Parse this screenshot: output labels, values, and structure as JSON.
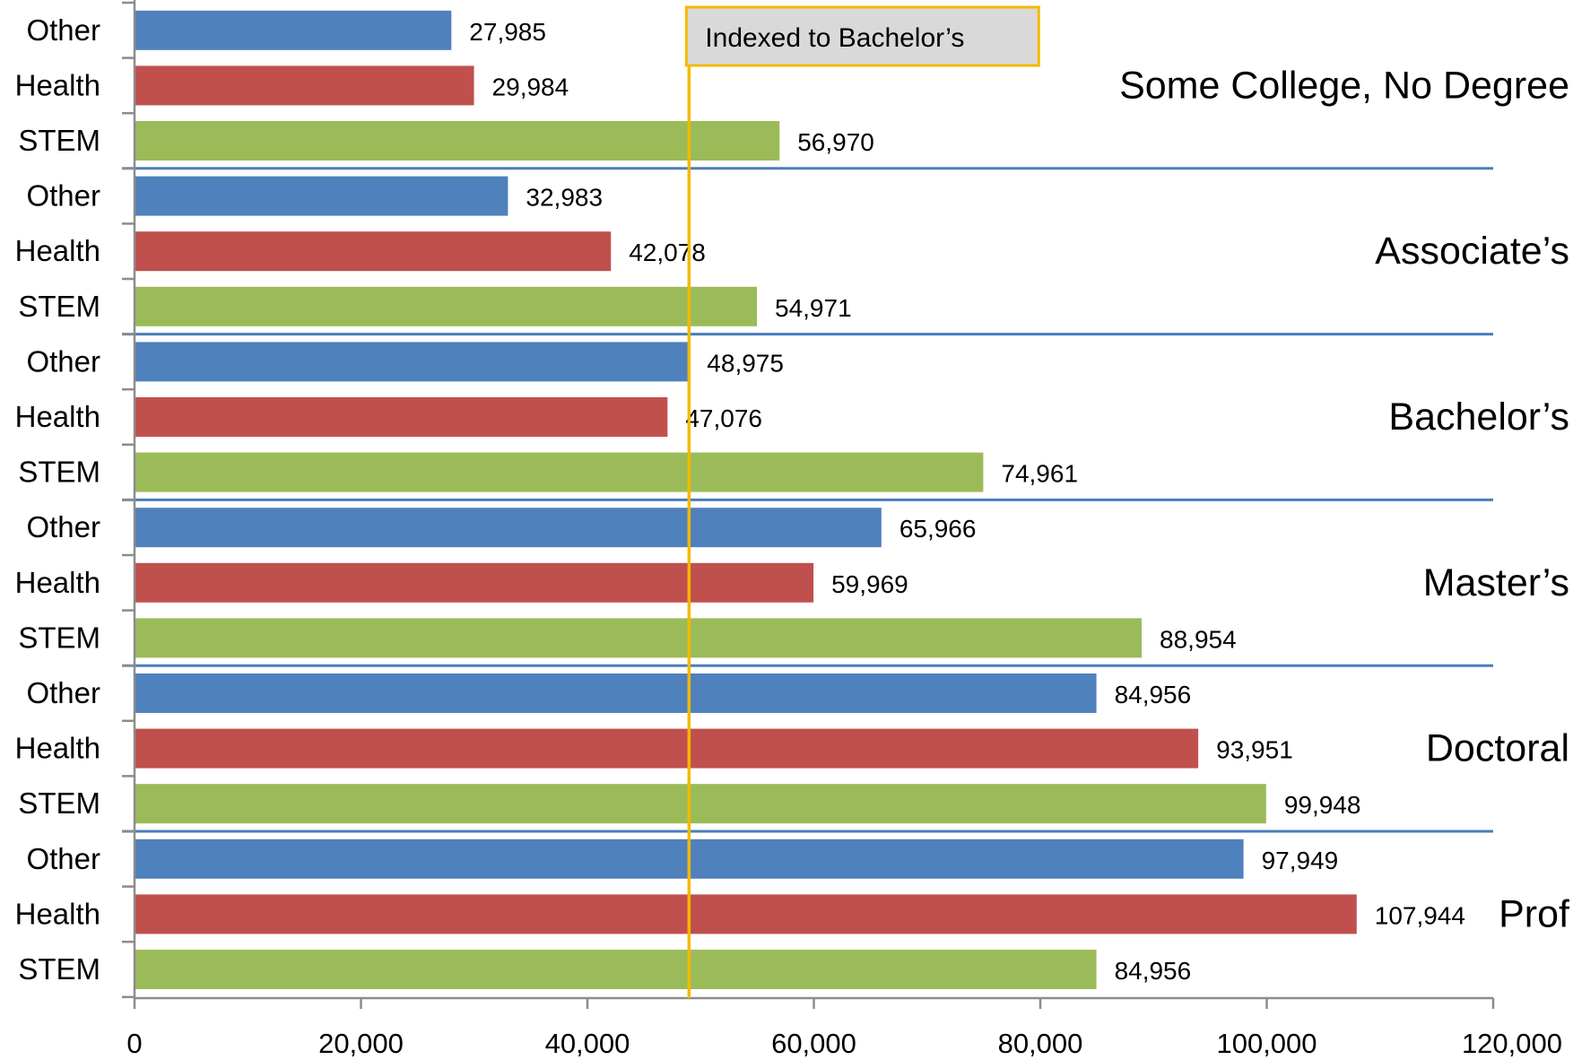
{
  "chart_data": {
    "type": "bar",
    "orientation": "horizontal",
    "xlim": [
      0,
      120000
    ],
    "x_ticks": [
      0,
      20000,
      40000,
      60000,
      80000,
      100000,
      120000
    ],
    "x_tick_labels": [
      "0",
      "20,000",
      "40,000",
      "60,000",
      "80,000",
      "100,000",
      "120,000"
    ],
    "grid": false,
    "colors": {
      "Other": "#4f81bd",
      "Health": "#c0504d",
      "STEM": "#9bbb59",
      "reference": "#f5b800",
      "separator": "#4a7ebb"
    },
    "reference_line": {
      "label": "Indexed to Bachelor’s",
      "value": 48975
    },
    "groups": [
      {
        "name": "Some College, No Degree",
        "bars": [
          {
            "category": "Other",
            "value": 27985,
            "label": "27,985"
          },
          {
            "category": "Health",
            "value": 29984,
            "label": "29,984"
          },
          {
            "category": "STEM",
            "value": 56970,
            "label": "56,970"
          }
        ]
      },
      {
        "name": "Associate’s",
        "bars": [
          {
            "category": "Other",
            "value": 32983,
            "label": "32,983"
          },
          {
            "category": "Health",
            "value": 42078,
            "label": "42,078"
          },
          {
            "category": "STEM",
            "value": 54971,
            "label": "54,971"
          }
        ]
      },
      {
        "name": "Bachelor’s",
        "bars": [
          {
            "category": "Other",
            "value": 48975,
            "label": "48,975"
          },
          {
            "category": "Health",
            "value": 47076,
            "label": "47,076"
          },
          {
            "category": "STEM",
            "value": 74961,
            "label": "74,961"
          }
        ]
      },
      {
        "name": "Master’s",
        "bars": [
          {
            "category": "Other",
            "value": 65966,
            "label": "65,966"
          },
          {
            "category": "Health",
            "value": 59969,
            "label": "59,969"
          },
          {
            "category": "STEM",
            "value": 88954,
            "label": "88,954"
          }
        ]
      },
      {
        "name": "Doctoral",
        "bars": [
          {
            "category": "Other",
            "value": 84956,
            "label": "84,956"
          },
          {
            "category": "Health",
            "value": 93951,
            "label": "93,951"
          },
          {
            "category": "STEM",
            "value": 99948,
            "label": "99,948"
          }
        ]
      },
      {
        "name": "Prof",
        "bars": [
          {
            "category": "Other",
            "value": 97949,
            "label": "97,949"
          },
          {
            "category": "Health",
            "value": 107944,
            "label": "107,944"
          },
          {
            "category": "STEM",
            "value": 84956,
            "label": "84,956"
          }
        ]
      }
    ]
  }
}
